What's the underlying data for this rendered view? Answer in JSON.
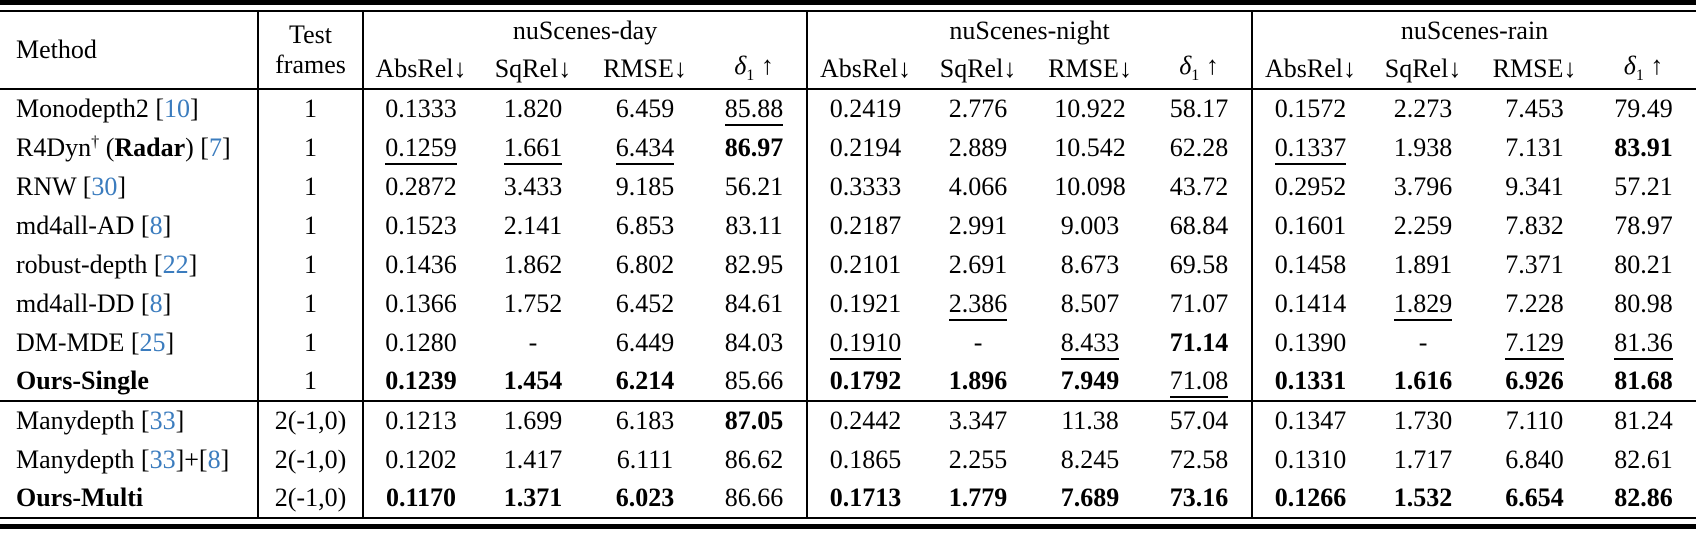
{
  "table": {
    "cite_color": "#3b7cbe",
    "headers": {
      "method": "Method",
      "test_frames_line1": "Test",
      "test_frames_line2": "frames",
      "groups": [
        "nuScenes-day",
        "nuScenes-night",
        "nuScenes-rain"
      ],
      "metrics": [
        {
          "label": "AbsRel",
          "sub": "",
          "arrow": "↓",
          "italic": false
        },
        {
          "label": "SqRel",
          "sub": "",
          "arrow": "↓",
          "italic": false
        },
        {
          "label": "RMSE",
          "sub": "",
          "arrow": "↓",
          "italic": false
        },
        {
          "label": "δ",
          "sub": "1",
          "arrow": "↑",
          "italic": true
        }
      ]
    },
    "rows": [
      {
        "method": [
          {
            "t": "Monodepth2 ["
          },
          {
            "t": "10",
            "cite": true
          },
          {
            "t": "]"
          }
        ],
        "test_frames": "1",
        "section_start": false,
        "cells": [
          {
            "v": "0.1333",
            "s": ""
          },
          {
            "v": "1.820",
            "s": ""
          },
          {
            "v": "6.459",
            "s": ""
          },
          {
            "v": "85.88",
            "s": "u"
          },
          {
            "v": "0.2419",
            "s": ""
          },
          {
            "v": "2.776",
            "s": ""
          },
          {
            "v": "10.922",
            "s": ""
          },
          {
            "v": "58.17",
            "s": ""
          },
          {
            "v": "0.1572",
            "s": ""
          },
          {
            "v": "2.273",
            "s": ""
          },
          {
            "v": "7.453",
            "s": ""
          },
          {
            "v": "79.49",
            "s": ""
          }
        ]
      },
      {
        "method": [
          {
            "t": "R4Dyn"
          },
          {
            "t": "†",
            "sup": true
          },
          {
            "t": " ("
          },
          {
            "t": "Radar",
            "bold": true
          },
          {
            "t": ") ["
          },
          {
            "t": "7",
            "cite": true
          },
          {
            "t": "]"
          }
        ],
        "test_frames": "1",
        "section_start": false,
        "cells": [
          {
            "v": "0.1259",
            "s": "u"
          },
          {
            "v": "1.661",
            "s": "u"
          },
          {
            "v": "6.434",
            "s": "u"
          },
          {
            "v": "86.97",
            "s": "b"
          },
          {
            "v": "0.2194",
            "s": ""
          },
          {
            "v": "2.889",
            "s": ""
          },
          {
            "v": "10.542",
            "s": ""
          },
          {
            "v": "62.28",
            "s": ""
          },
          {
            "v": "0.1337",
            "s": "u"
          },
          {
            "v": "1.938",
            "s": ""
          },
          {
            "v": "7.131",
            "s": ""
          },
          {
            "v": "83.91",
            "s": "b"
          }
        ]
      },
      {
        "method": [
          {
            "t": "RNW ["
          },
          {
            "t": "30",
            "cite": true
          },
          {
            "t": "]"
          }
        ],
        "test_frames": "1",
        "section_start": false,
        "cells": [
          {
            "v": "0.2872",
            "s": ""
          },
          {
            "v": "3.433",
            "s": ""
          },
          {
            "v": "9.185",
            "s": ""
          },
          {
            "v": "56.21",
            "s": ""
          },
          {
            "v": "0.3333",
            "s": ""
          },
          {
            "v": "4.066",
            "s": ""
          },
          {
            "v": "10.098",
            "s": ""
          },
          {
            "v": "43.72",
            "s": ""
          },
          {
            "v": "0.2952",
            "s": ""
          },
          {
            "v": "3.796",
            "s": ""
          },
          {
            "v": "9.341",
            "s": ""
          },
          {
            "v": "57.21",
            "s": ""
          }
        ]
      },
      {
        "method": [
          {
            "t": "md4all-AD ["
          },
          {
            "t": "8",
            "cite": true
          },
          {
            "t": "]"
          }
        ],
        "test_frames": "1",
        "section_start": false,
        "cells": [
          {
            "v": "0.1523",
            "s": ""
          },
          {
            "v": "2.141",
            "s": ""
          },
          {
            "v": "6.853",
            "s": ""
          },
          {
            "v": "83.11",
            "s": ""
          },
          {
            "v": "0.2187",
            "s": ""
          },
          {
            "v": "2.991",
            "s": ""
          },
          {
            "v": "9.003",
            "s": ""
          },
          {
            "v": "68.84",
            "s": ""
          },
          {
            "v": "0.1601",
            "s": ""
          },
          {
            "v": "2.259",
            "s": ""
          },
          {
            "v": "7.832",
            "s": ""
          },
          {
            "v": "78.97",
            "s": ""
          }
        ]
      },
      {
        "method": [
          {
            "t": "robust-depth ["
          },
          {
            "t": "22",
            "cite": true
          },
          {
            "t": "]"
          }
        ],
        "test_frames": "1",
        "section_start": false,
        "cells": [
          {
            "v": "0.1436",
            "s": ""
          },
          {
            "v": "1.862",
            "s": ""
          },
          {
            "v": "6.802",
            "s": ""
          },
          {
            "v": "82.95",
            "s": ""
          },
          {
            "v": "0.2101",
            "s": ""
          },
          {
            "v": "2.691",
            "s": ""
          },
          {
            "v": "8.673",
            "s": ""
          },
          {
            "v": "69.58",
            "s": ""
          },
          {
            "v": "0.1458",
            "s": ""
          },
          {
            "v": "1.891",
            "s": ""
          },
          {
            "v": "7.371",
            "s": ""
          },
          {
            "v": "80.21",
            "s": ""
          }
        ]
      },
      {
        "method": [
          {
            "t": "md4all-DD ["
          },
          {
            "t": "8",
            "cite": true
          },
          {
            "t": "]"
          }
        ],
        "test_frames": "1",
        "section_start": false,
        "cells": [
          {
            "v": "0.1366",
            "s": ""
          },
          {
            "v": "1.752",
            "s": ""
          },
          {
            "v": "6.452",
            "s": ""
          },
          {
            "v": "84.61",
            "s": ""
          },
          {
            "v": "0.1921",
            "s": ""
          },
          {
            "v": "2.386",
            "s": "u"
          },
          {
            "v": "8.507",
            "s": ""
          },
          {
            "v": "71.07",
            "s": ""
          },
          {
            "v": "0.1414",
            "s": ""
          },
          {
            "v": "1.829",
            "s": "u"
          },
          {
            "v": "7.228",
            "s": ""
          },
          {
            "v": "80.98",
            "s": ""
          }
        ]
      },
      {
        "method": [
          {
            "t": "DM-MDE ["
          },
          {
            "t": "25",
            "cite": true
          },
          {
            "t": "]"
          }
        ],
        "test_frames": "1",
        "section_start": false,
        "cells": [
          {
            "v": "0.1280",
            "s": ""
          },
          {
            "v": "-",
            "s": ""
          },
          {
            "v": "6.449",
            "s": ""
          },
          {
            "v": "84.03",
            "s": ""
          },
          {
            "v": "0.1910",
            "s": "u"
          },
          {
            "v": "-",
            "s": ""
          },
          {
            "v": "8.433",
            "s": "u"
          },
          {
            "v": "71.14",
            "s": "b"
          },
          {
            "v": "0.1390",
            "s": ""
          },
          {
            "v": "-",
            "s": ""
          },
          {
            "v": "7.129",
            "s": "u"
          },
          {
            "v": "81.36",
            "s": "u"
          }
        ]
      },
      {
        "method": [
          {
            "t": "Ours-Single",
            "bold": true
          }
        ],
        "test_frames": "1",
        "section_start": false,
        "cells": [
          {
            "v": "0.1239",
            "s": "b"
          },
          {
            "v": "1.454",
            "s": "b"
          },
          {
            "v": "6.214",
            "s": "b"
          },
          {
            "v": "85.66",
            "s": ""
          },
          {
            "v": "0.1792",
            "s": "b"
          },
          {
            "v": "1.896",
            "s": "b"
          },
          {
            "v": "7.949",
            "s": "b"
          },
          {
            "v": "71.08",
            "s": "u"
          },
          {
            "v": "0.1331",
            "s": "b"
          },
          {
            "v": "1.616",
            "s": "b"
          },
          {
            "v": "6.926",
            "s": "b"
          },
          {
            "v": "81.68",
            "s": "b"
          }
        ]
      },
      {
        "method": [
          {
            "t": "Manydepth ["
          },
          {
            "t": "33",
            "cite": true
          },
          {
            "t": "]"
          }
        ],
        "test_frames": "2(-1,0)",
        "section_start": true,
        "cells": [
          {
            "v": "0.1213",
            "s": ""
          },
          {
            "v": "1.699",
            "s": ""
          },
          {
            "v": "6.183",
            "s": ""
          },
          {
            "v": "87.05",
            "s": "b"
          },
          {
            "v": "0.2442",
            "s": ""
          },
          {
            "v": "3.347",
            "s": ""
          },
          {
            "v": "11.38",
            "s": ""
          },
          {
            "v": "57.04",
            "s": ""
          },
          {
            "v": "0.1347",
            "s": ""
          },
          {
            "v": "1.730",
            "s": ""
          },
          {
            "v": "7.110",
            "s": ""
          },
          {
            "v": "81.24",
            "s": ""
          }
        ]
      },
      {
        "method": [
          {
            "t": "Manydepth ["
          },
          {
            "t": "33",
            "cite": true
          },
          {
            "t": "]+["
          },
          {
            "t": "8",
            "cite": true
          },
          {
            "t": "]"
          }
        ],
        "test_frames": "2(-1,0)",
        "section_start": false,
        "cells": [
          {
            "v": "0.1202",
            "s": ""
          },
          {
            "v": "1.417",
            "s": ""
          },
          {
            "v": "6.111",
            "s": ""
          },
          {
            "v": "86.62",
            "s": ""
          },
          {
            "v": "0.1865",
            "s": ""
          },
          {
            "v": "2.255",
            "s": ""
          },
          {
            "v": "8.245",
            "s": ""
          },
          {
            "v": "72.58",
            "s": ""
          },
          {
            "v": "0.1310",
            "s": ""
          },
          {
            "v": "1.717",
            "s": ""
          },
          {
            "v": "6.840",
            "s": ""
          },
          {
            "v": "82.61",
            "s": ""
          }
        ]
      },
      {
        "method": [
          {
            "t": "Ours-Multi",
            "bold": true
          }
        ],
        "test_frames": "2(-1,0)",
        "section_start": false,
        "cells": [
          {
            "v": "0.1170",
            "s": "b"
          },
          {
            "v": "1.371",
            "s": "b"
          },
          {
            "v": "6.023",
            "s": "b"
          },
          {
            "v": "86.66",
            "s": ""
          },
          {
            "v": "0.1713",
            "s": "b"
          },
          {
            "v": "1.779",
            "s": "b"
          },
          {
            "v": "7.689",
            "s": "b"
          },
          {
            "v": "73.16",
            "s": "b"
          },
          {
            "v": "0.1266",
            "s": "b"
          },
          {
            "v": "1.532",
            "s": "b"
          },
          {
            "v": "6.654",
            "s": "b"
          },
          {
            "v": "82.86",
            "s": "b"
          }
        ]
      }
    ]
  }
}
